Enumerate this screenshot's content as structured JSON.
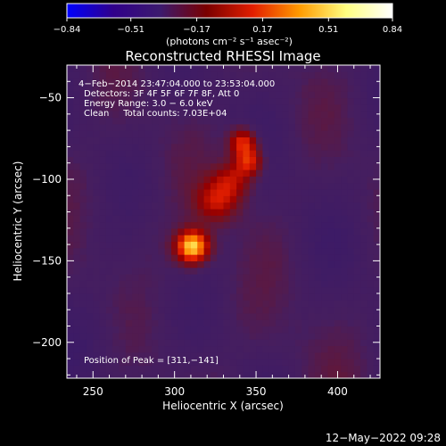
{
  "chart_data": {
    "type": "heatmap",
    "title": "Reconstructed RHESSI Image",
    "xlabel": "Heliocentric X (arcsec)",
    "ylabel": "Heliocentric Y (arcsec)",
    "xlim": [
      234,
      426
    ],
    "ylim": [
      -222,
      -30
    ],
    "x_ticks": [
      250,
      300,
      350,
      400
    ],
    "y_ticks": [
      -50,
      -100,
      -150,
      -200
    ],
    "x_tick_labels": [
      "250",
      "300",
      "350",
      "400"
    ],
    "y_tick_labels": [
      "−50",
      "−100",
      "−150",
      "−200"
    ],
    "colorbar": {
      "range": [
        -0.84,
        0.84
      ],
      "ticks": [
        -0.84,
        -0.51,
        -0.17,
        0.17,
        0.51,
        0.84
      ],
      "tick_labels": [
        "−0.84",
        "−0.51",
        "−0.17",
        "0.17",
        "0.51",
        "0.84"
      ],
      "unit_label": "(photons cm⁻² s⁻¹ asec⁻²)",
      "colormap": [
        "#0000ff",
        "#30008a",
        "#3c1a6e",
        "#7a0000",
        "#e21e00",
        "#ff9a00",
        "#ffff80",
        "#ffffff"
      ]
    },
    "annotations": [
      "4−Feb−2014 23:47:04.000 to 23:53:04.000",
      "Detectors: 3F 4F 5F 6F 7F 8F, Att 0",
      "Energy Range: 3.0 − 6.0 keV",
      "Clean     Total counts: 7.03E+04",
      "Position of Peak = [311,−141]"
    ],
    "sources": [
      {
        "x": 311,
        "y": -141,
        "peak": 1.0,
        "sigma": 7
      },
      {
        "x": 342,
        "y": -77,
        "peak": 0.62,
        "sigma": 6
      },
      {
        "x": 346,
        "y": -89,
        "peak": 0.55,
        "sigma": 6
      },
      {
        "x": 326,
        "y": -113,
        "peak": 0.45,
        "sigma": 9
      },
      {
        "x": 336,
        "y": -100,
        "peak": 0.4,
        "sigma": 8
      }
    ],
    "peak_position": [
      311,
      -141
    ]
  },
  "footer": {
    "timestamp": "12−May−2022 09:28"
  }
}
